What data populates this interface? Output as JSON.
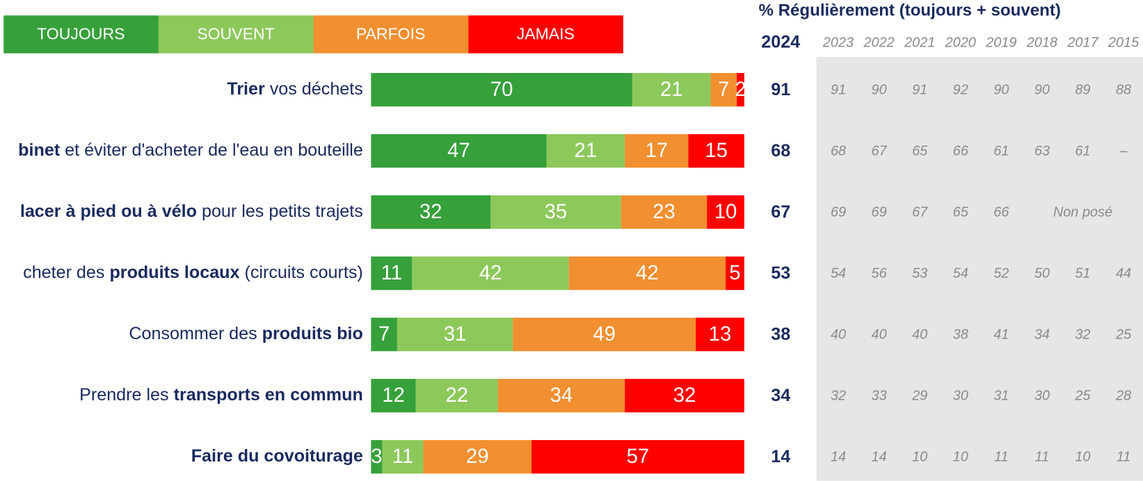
{
  "chart_data": {
    "type": "stacked-bar-horizontal",
    "categories": [
      [
        {
          "text": "Trier",
          "bold": true
        },
        {
          "text": " vos déchets",
          "bold": false
        }
      ],
      [
        {
          "text": "binet",
          "bold": true
        },
        {
          "text": " et éviter d'acheter de l'eau en bouteille",
          "bold": false
        }
      ],
      [
        {
          "text": "lacer à pied ou à vélo",
          "bold": true
        },
        {
          "text": " pour les petits trajets",
          "bold": false
        }
      ],
      [
        {
          "text": "cheter des ",
          "bold": false
        },
        {
          "text": "produits locaux",
          "bold": true
        },
        {
          "text": " (circuits courts)",
          "bold": false
        }
      ],
      [
        {
          "text": "Consommer des ",
          "bold": false
        },
        {
          "text": "produits bio",
          "bold": true
        }
      ],
      [
        {
          "text": "Prendre les ",
          "bold": false
        },
        {
          "text": "transports en commun",
          "bold": true
        }
      ],
      [
        {
          "text": "Faire du covoiturage",
          "bold": true
        }
      ]
    ],
    "xlim": [
      0,
      100
    ],
    "series": [
      {
        "name": "TOUJOURS",
        "color": "#36a03a",
        "values": [
          70,
          47,
          32,
          11,
          7,
          12,
          3
        ]
      },
      {
        "name": "SOUVENT",
        "color": "#8dc85b",
        "values": [
          21,
          21,
          35,
          42,
          31,
          22,
          11
        ]
      },
      {
        "name": "PARFOIS",
        "color": "#f28f30",
        "values": [
          7,
          17,
          23,
          42,
          49,
          34,
          29
        ]
      },
      {
        "name": "JAMAIS",
        "color": "#ff0000",
        "values": [
          2,
          15,
          10,
          5,
          13,
          32,
          57
        ]
      }
    ],
    "legend": "top-left"
  },
  "table": {
    "title": "% Régulièrement (toujours + souvent)",
    "columns": [
      "2024",
      "2023",
      "2022",
      "2021",
      "2020",
      "2019",
      "2018",
      "2017",
      "2015"
    ],
    "rows": [
      [
        91,
        91,
        90,
        91,
        92,
        90,
        90,
        89,
        88
      ],
      [
        68,
        68,
        67,
        65,
        66,
        61,
        63,
        61,
        "–"
      ],
      [
        67,
        69,
        69,
        67,
        65,
        66,
        "Non posé"
      ],
      [
        53,
        54,
        56,
        53,
        54,
        52,
        50,
        51,
        44
      ],
      [
        38,
        40,
        40,
        40,
        38,
        41,
        34,
        32,
        25
      ],
      [
        34,
        32,
        33,
        29,
        30,
        31,
        30,
        25,
        28
      ],
      [
        14,
        14,
        14,
        10,
        10,
        11,
        11,
        10,
        11
      ]
    ]
  }
}
